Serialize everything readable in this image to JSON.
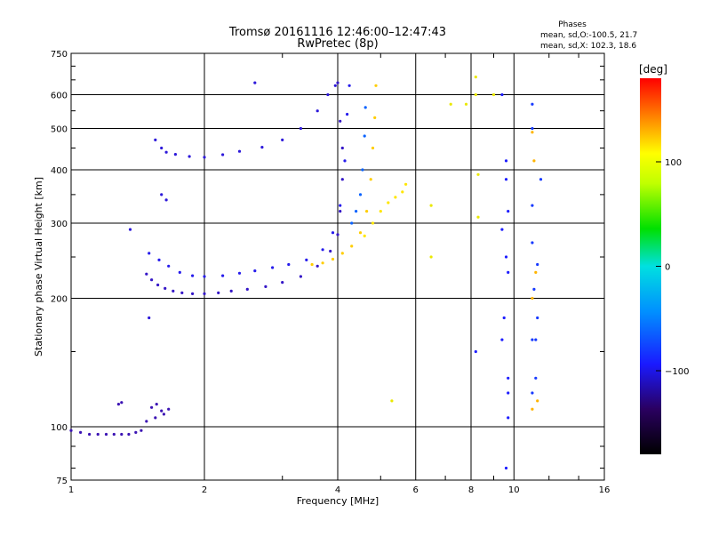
{
  "chart_data": {
    "type": "scatter",
    "title": "Tromsø 20161116 12:46:00–12:47:43",
    "subtitle": "RwPretec (8p)",
    "xlabel": "Frequency [MHz]",
    "ylabel": "Stationary phase Virtual Height [km]",
    "x_scale": "log",
    "y_scale": "log",
    "xlim": [
      1,
      16
    ],
    "ylim": [
      75,
      750
    ],
    "grid": true,
    "xticks": [
      1,
      2,
      4,
      6,
      8,
      10,
      16
    ],
    "xtick_labels": [
      "1",
      "2",
      "4",
      "6",
      "8",
      "10",
      "16"
    ],
    "yticks": [
      75,
      100,
      200,
      300,
      400,
      500,
      600,
      750
    ],
    "ytick_labels": [
      "75",
      "100",
      "200",
      "300",
      "400",
      "500",
      "600",
      "750"
    ],
    "phases_info": {
      "title": "Phases",
      "line1": "mean, sd,O:-100.5, 21.7",
      "line2": "mean, sd,X: 102.3, 18.6"
    },
    "colorbar": {
      "label": "[deg]",
      "ticks": [
        100,
        0,
        -100
      ],
      "tick_labels": [
        "100",
        "0",
        "−100"
      ],
      "range": [
        -180,
        180
      ]
    },
    "series": [
      {
        "points": [
          [
            1.0,
            98
          ],
          [
            1.05,
            97
          ],
          [
            1.1,
            96
          ],
          [
            1.15,
            96
          ],
          [
            1.2,
            96
          ],
          [
            1.25,
            96
          ],
          [
            1.3,
            96
          ],
          [
            1.35,
            96
          ],
          [
            1.4,
            97
          ],
          [
            1.44,
            98
          ],
          [
            1.48,
            103
          ],
          [
            1.55,
            105
          ],
          [
            1.62,
            107
          ]
        ],
        "phase": -120
      },
      {
        "points": [
          [
            1.28,
            113
          ],
          [
            1.3,
            114
          ],
          [
            1.52,
            111
          ],
          [
            1.56,
            113
          ],
          [
            1.6,
            109
          ],
          [
            1.66,
            110
          ]
        ],
        "phase": -120
      },
      {
        "points": [
          [
            1.48,
            228
          ],
          [
            1.52,
            221
          ],
          [
            1.57,
            215
          ],
          [
            1.63,
            211
          ],
          [
            1.7,
            208
          ],
          [
            1.78,
            206
          ],
          [
            1.88,
            205
          ],
          [
            2.0,
            205
          ],
          [
            2.15,
            206
          ],
          [
            2.3,
            208
          ],
          [
            2.5,
            210
          ],
          [
            2.75,
            213
          ],
          [
            3.0,
            218
          ],
          [
            3.3,
            225
          ],
          [
            3.6,
            238
          ],
          [
            3.85,
            258
          ],
          [
            4.0,
            282
          ],
          [
            4.05,
            320
          ],
          [
            4.1,
            380
          ],
          [
            4.1,
            450
          ],
          [
            4.05,
            520
          ],
          [
            4.0,
            640
          ]
        ],
        "phase": -115
      },
      {
        "points": [
          [
            1.5,
            255
          ],
          [
            1.58,
            246
          ],
          [
            1.66,
            238
          ],
          [
            1.76,
            230
          ],
          [
            1.88,
            226
          ],
          [
            2.0,
            225
          ],
          [
            2.2,
            226
          ],
          [
            2.4,
            229
          ],
          [
            2.6,
            232
          ],
          [
            2.85,
            236
          ],
          [
            3.1,
            240
          ],
          [
            3.4,
            246
          ],
          [
            3.7,
            260
          ],
          [
            3.9,
            285
          ],
          [
            4.05,
            330
          ],
          [
            4.15,
            420
          ],
          [
            4.2,
            540
          ],
          [
            4.25,
            630
          ]
        ],
        "phase": -105
      },
      {
        "points": [
          [
            1.64,
            440
          ],
          [
            1.72,
            435
          ],
          [
            1.85,
            430
          ],
          [
            2.0,
            428
          ],
          [
            2.2,
            434
          ],
          [
            2.4,
            442
          ],
          [
            2.7,
            452
          ],
          [
            3.0,
            470
          ],
          [
            3.3,
            500
          ],
          [
            3.6,
            550
          ],
          [
            3.8,
            600
          ],
          [
            3.95,
            630
          ]
        ],
        "phase": -110
      },
      {
        "points": [
          [
            3.5,
            240
          ],
          [
            3.7,
            242
          ],
          [
            3.9,
            247
          ],
          [
            4.1,
            255
          ],
          [
            4.3,
            265
          ],
          [
            4.5,
            285
          ],
          [
            4.65,
            320
          ],
          [
            4.75,
            380
          ],
          [
            4.8,
            450
          ],
          [
            4.85,
            530
          ],
          [
            4.88,
            630
          ]
        ],
        "phase": 100
      },
      {
        "points": [
          [
            4.6,
            280
          ],
          [
            4.8,
            300
          ],
          [
            5.0,
            320
          ],
          [
            5.2,
            335
          ],
          [
            5.4,
            345
          ],
          [
            5.6,
            355
          ],
          [
            5.7,
            370
          ]
        ],
        "phase": 90
      },
      {
        "points": [
          [
            4.3,
            300
          ],
          [
            4.4,
            320
          ],
          [
            4.5,
            350
          ],
          [
            4.55,
            400
          ],
          [
            4.6,
            480
          ],
          [
            4.62,
            560
          ]
        ],
        "phase": -75
      },
      {
        "points": [
          [
            1.6,
            350
          ],
          [
            1.64,
            340
          ],
          [
            1.55,
            470
          ],
          [
            1.6,
            450
          ],
          [
            1.36,
            290
          ],
          [
            1.5,
            180
          ],
          [
            2.6,
            640
          ]
        ],
        "phase": -110
      },
      {
        "points": [
          [
            6.5,
            250
          ],
          [
            6.5,
            330
          ],
          [
            7.2,
            570
          ],
          [
            7.8,
            570
          ],
          [
            8.2,
            600
          ],
          [
            8.2,
            660
          ],
          [
            8.3,
            390
          ],
          [
            8.3,
            310
          ],
          [
            9.0,
            600
          ],
          [
            5.3,
            115
          ]
        ],
        "phase": 80
      },
      {
        "points": [
          [
            9.4,
            290
          ],
          [
            9.6,
            380
          ],
          [
            9.6,
            420
          ],
          [
            9.7,
            320
          ],
          [
            9.6,
            250
          ],
          [
            9.7,
            230
          ],
          [
            9.5,
            180
          ],
          [
            9.7,
            130
          ],
          [
            9.7,
            120
          ],
          [
            9.7,
            105
          ],
          [
            9.6,
            80
          ],
          [
            9.4,
            160
          ],
          [
            8.2,
            150
          ],
          [
            9.4,
            600
          ]
        ],
        "phase": -100
      },
      {
        "points": [
          [
            11.0,
            570
          ],
          [
            11.0,
            500
          ],
          [
            11.0,
            330
          ],
          [
            11.0,
            270
          ],
          [
            11.1,
            210
          ],
          [
            11.3,
            240
          ],
          [
            11.3,
            180
          ],
          [
            11.0,
            160
          ],
          [
            11.2,
            130
          ],
          [
            11.5,
            380
          ],
          [
            11.2,
            160
          ],
          [
            11.0,
            120
          ]
        ],
        "phase": -90
      },
      {
        "points": [
          [
            11.0,
            490
          ],
          [
            11.1,
            420
          ],
          [
            11.2,
            230
          ],
          [
            11.0,
            200
          ],
          [
            11.0,
            110
          ],
          [
            11.3,
            115
          ]
        ],
        "phase": 110
      }
    ]
  }
}
